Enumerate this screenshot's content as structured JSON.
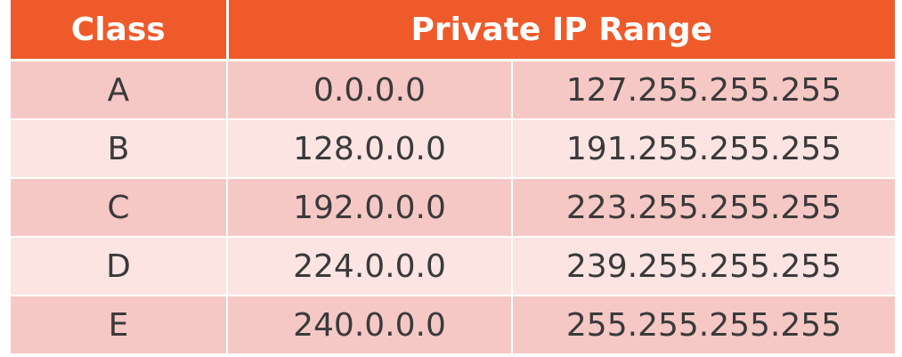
{
  "table": {
    "headers": {
      "class": "Class",
      "range": "Private IP Range"
    },
    "rows": [
      {
        "class": "A",
        "start": "0.0.0.0",
        "end": "127.255.255.255"
      },
      {
        "class": "B",
        "start": "128.0.0.0",
        "end": "191.255.255.255"
      },
      {
        "class": "C",
        "start": "192.0.0.0",
        "end": "223.255.255.255"
      },
      {
        "class": "D",
        "start": "224.0.0.0",
        "end": "239.255.255.255"
      },
      {
        "class": "E",
        "start": "240.0.0.0",
        "end": "255.255.255.255"
      }
    ]
  },
  "colors": {
    "header_bg": "#ef5a2a",
    "header_text": "#ffffff",
    "row_odd_bg": "#f6c8c5",
    "row_even_bg": "#fbe4e2",
    "cell_text": "#3a3a3a"
  }
}
